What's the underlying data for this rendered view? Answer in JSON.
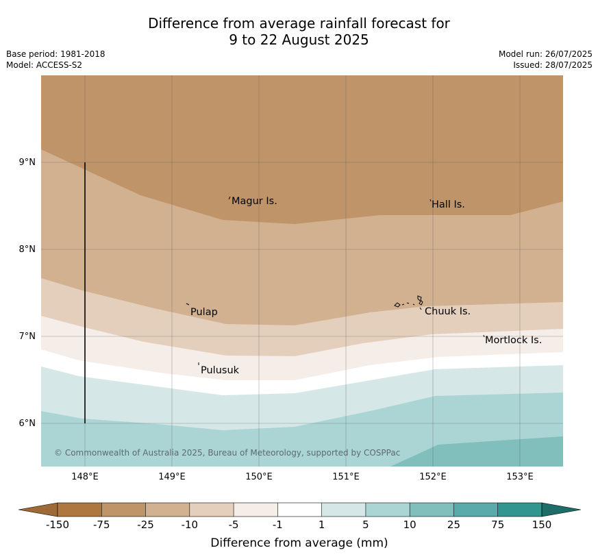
{
  "title": {
    "line1": "Difference from average rainfall forecast for",
    "line2": "9 to 22 August 2025"
  },
  "meta": {
    "base_period": "Base period: 1981-2018",
    "model": "Model: ACCESS-S2",
    "model_run": "Model run: 26/07/2025",
    "issued": "Issued: 28/07/2025"
  },
  "map": {
    "lon_ticks": [
      "148°E",
      "149°E",
      "150°E",
      "151°E",
      "152°E",
      "153°E"
    ],
    "lat_ticks": [
      "9°N",
      "8°N",
      "7°N",
      "6°N"
    ],
    "places": {
      "magur": "Magur Is.",
      "hall": "Hall Is.",
      "pulap": "Pulap",
      "chuuk": "Chuuk Is.",
      "mortlock": "Mortlock Is.",
      "pulusuk": "Pulusuk"
    },
    "copyright": "© Commonwealth of Australia 2025, Bureau of Meteorology, supported by COSPPac"
  },
  "colorbar": {
    "title": "Difference from average (mm)",
    "labels": [
      "-150",
      "-75",
      "-25",
      "-10",
      "-5",
      "-1",
      "1",
      "5",
      "10",
      "25",
      "75",
      "150"
    ],
    "colors": {
      "below_min": "#9e6a36",
      "bins": [
        "#ad773f",
        "#bf9468",
        "#d2b190",
        "#e4cfbd",
        "#f5ede8",
        "#ffffff",
        "#d5e8e7",
        "#abd5d4",
        "#81bfbd",
        "#58aba9",
        "#31968f"
      ],
      "above_max": "#1e6d68"
    }
  }
}
